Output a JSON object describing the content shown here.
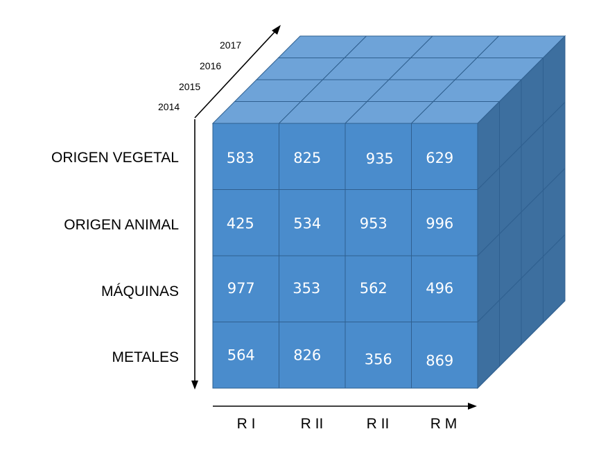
{
  "years": [
    "2017",
    "2016",
    "2015",
    "2014"
  ],
  "rows": [
    "ORIGEN VEGETAL",
    "ORIGEN ANIMAL",
    "MÁQUINAS",
    "METALES"
  ],
  "columns": [
    "R I",
    "R II",
    "R II",
    "R M"
  ],
  "values": [
    [
      "583",
      "825",
      "935",
      "629"
    ],
    [
      "425",
      "534",
      "953",
      "996"
    ],
    [
      "977",
      "353",
      "562",
      "496"
    ],
    [
      "564",
      "826",
      "356",
      "869"
    ]
  ],
  "colors": {
    "front": "#4a8ccc",
    "top": "#6ea3d8",
    "side": "#3d6f9f",
    "grid": "#2f5f8f"
  }
}
